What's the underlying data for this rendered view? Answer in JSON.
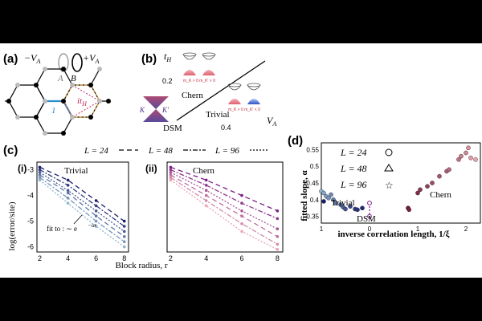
{
  "panel_a": {
    "label": "(a)",
    "minus_va": "−V",
    "minus_va_sub": "A",
    "plus_va": "+V",
    "plus_va_sub": "A",
    "site_a": "A",
    "site_b": "B",
    "hop_1": "1",
    "hop_ith": "it",
    "hop_ith_sub": "H"
  },
  "panel_b": {
    "label": "(b)",
    "y_axis": "t",
    "y_axis_sub": "H",
    "x_axis": "V",
    "x_axis_sub": "A",
    "y_tick": "0.2",
    "x_tick": "0.4",
    "chern": "Chern",
    "trivial": "Trivial",
    "dsm": "DSM",
    "k": "K",
    "kprime": "K′",
    "mass_chern": "m_K > 0   m_K′ > 0",
    "mass_trivial": "m_K > 0   m_K′ < 0"
  },
  "panel_c": {
    "label": "(c)",
    "legend_L24": "L = 24",
    "legend_L48": "L = 48",
    "legend_L96": "L = 96",
    "sub_i": "(i)",
    "sub_ii": "(ii)",
    "title_i": "Trivial",
    "title_ii": "Chern",
    "ylabel": "log(error/site)",
    "xlabel": "Block radius, r",
    "fit_text": "fit to : ∼ e",
    "fit_exp": "−αr",
    "yticks": [
      "-3",
      "-4",
      "-5",
      "-6"
    ],
    "xticks": [
      "2",
      "4",
      "6",
      "8"
    ]
  },
  "panel_d": {
    "label": "(d)",
    "legend_L24": "L = 24",
    "legend_L48": "L = 48",
    "legend_L96": "L = 96",
    "ylabel": "fitted slope, α",
    "xlabel": "inverse correlation length, 1/ξ",
    "trivial": "Trivial",
    "dsm": "DSM",
    "chern": "Chern",
    "yticks": [
      "0.55",
      "0.5",
      "0.45",
      "0.4",
      "0.35"
    ],
    "xticks": [
      "1",
      "0",
      "1",
      "2"
    ]
  },
  "colors": {
    "trivial_dark": "#1a1f6b",
    "trivial_light": "#8fb3cf",
    "chern_dark": "#6b1a3a",
    "chern_light": "#e9a6b5",
    "dsm_purple": "#7a1f86"
  },
  "chart_data": [
    {
      "type": "scatter",
      "title": "Trivial",
      "xlabel": "Block radius, r",
      "ylabel": "log(error/site)",
      "xlim": [
        1.8,
        8.3
      ],
      "ylim": [
        -6.2,
        -2.7
      ],
      "x": [
        2,
        4,
        6,
        8
      ],
      "series": [
        {
          "values": [
            -2.9,
            -3.4,
            -4.2,
            -5.0
          ]
        },
        {
          "values": [
            -3.0,
            -3.6,
            -4.4,
            -5.2
          ]
        },
        {
          "values": [
            -3.1,
            -3.8,
            -4.6,
            -5.4
          ]
        },
        {
          "values": [
            -3.2,
            -3.9,
            -4.8,
            -5.6
          ]
        },
        {
          "values": [
            -3.3,
            -4.1,
            -5.0,
            -5.8
          ]
        },
        {
          "values": [
            -3.4,
            -4.3,
            -5.2,
            -6.0
          ]
        }
      ]
    },
    {
      "type": "scatter",
      "title": "Chern",
      "xlabel": "Block radius, r",
      "ylim": [
        -6.2,
        -2.7
      ],
      "xlim": [
        1.8,
        8.3
      ],
      "x": [
        2,
        4,
        6,
        8
      ],
      "series": [
        {
          "values": [
            -2.9,
            -3.4,
            -4.0,
            -4.6
          ]
        },
        {
          "values": [
            -3.0,
            -3.6,
            -4.3,
            -4.9
          ]
        },
        {
          "values": [
            -3.1,
            -3.8,
            -4.6,
            -5.3
          ]
        },
        {
          "values": [
            -3.2,
            -4.0,
            -4.8,
            -5.6
          ]
        },
        {
          "values": [
            -3.3,
            -4.2,
            -5.1,
            -5.9
          ]
        },
        {
          "values": [
            -3.4,
            -4.4,
            -5.4,
            -6.1
          ]
        }
      ]
    },
    {
      "type": "scatter",
      "xlabel": "inverse correlation length, 1/ξ",
      "ylabel": "fitted slope, α",
      "ylim": [
        0.33,
        0.57
      ],
      "points_trivial": [
        {
          "x": -1.0,
          "y": 0.425
        },
        {
          "x": -0.95,
          "y": 0.42
        },
        {
          "x": -0.9,
          "y": 0.41
        },
        {
          "x": -0.85,
          "y": 0.405
        },
        {
          "x": -0.8,
          "y": 0.415
        },
        {
          "x": -0.75,
          "y": 0.4
        },
        {
          "x": -0.7,
          "y": 0.39
        },
        {
          "x": -0.6,
          "y": 0.385
        },
        {
          "x": -0.55,
          "y": 0.378
        },
        {
          "x": -0.5,
          "y": 0.372
        },
        {
          "x": -0.4,
          "y": 0.38
        },
        {
          "x": -0.3,
          "y": 0.372
        },
        {
          "x": -0.25,
          "y": 0.37
        },
        {
          "x": -0.15,
          "y": 0.375
        },
        {
          "x": -0.95,
          "y": 0.395
        }
      ],
      "points_chern": [
        {
          "x": 0.8,
          "y": 0.375
        },
        {
          "x": 0.82,
          "y": 0.37
        },
        {
          "x": 1.0,
          "y": 0.42
        },
        {
          "x": 1.05,
          "y": 0.43
        },
        {
          "x": 1.2,
          "y": 0.44
        },
        {
          "x": 1.3,
          "y": 0.45
        },
        {
          "x": 1.45,
          "y": 0.47
        },
        {
          "x": 1.6,
          "y": 0.485
        },
        {
          "x": 1.65,
          "y": 0.49
        },
        {
          "x": 1.85,
          "y": 0.52
        },
        {
          "x": 1.9,
          "y": 0.53
        },
        {
          "x": 2.0,
          "y": 0.54
        },
        {
          "x": 2.05,
          "y": 0.555
        },
        {
          "x": 2.1,
          "y": 0.525
        },
        {
          "x": 2.2,
          "y": 0.52
        }
      ],
      "points_dsm": [
        {
          "x": 0.0,
          "y": 0.39
        },
        {
          "x": 0.0,
          "y": 0.35
        }
      ]
    }
  ]
}
